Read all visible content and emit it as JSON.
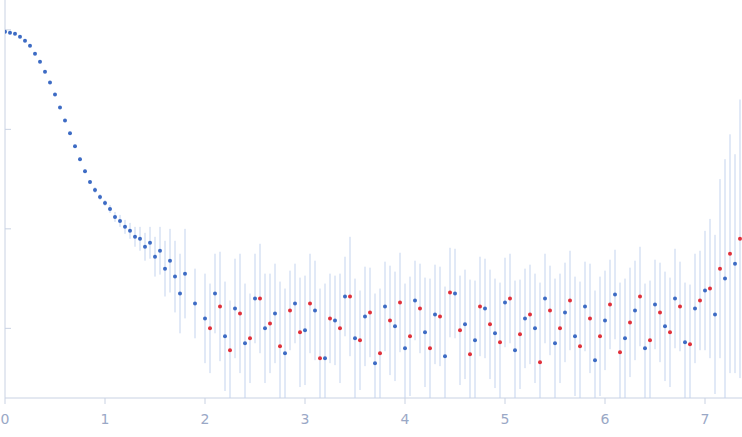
{
  "chart_data": {
    "type": "scatter",
    "log": "y",
    "tick_labels": "x",
    "grid": false,
    "xlim": [
      0,
      7.37
    ],
    "ylim": [
      0,
      4
    ],
    "xticks": [
      0,
      1,
      2,
      3,
      4,
      5,
      6,
      7
    ],
    "yticks": [
      0.7,
      1.7,
      2.7,
      3.7
    ],
    "series": [
      {
        "color": "#3d6bc4",
        "marker": "circle",
        "x": [
          0,
          0.05,
          0.1,
          0.15,
          0.2,
          0.25,
          0.3,
          0.35,
          0.4,
          0.45,
          0.5,
          0.55,
          0.6,
          0.65,
          0.7,
          0.75,
          0.8,
          0.85,
          0.9,
          0.95,
          1.0,
          1.05,
          1.1,
          1.15,
          1.2,
          1.25,
          1.3,
          1.35,
          1.4,
          1.45,
          1.5,
          1.55,
          1.6,
          1.65,
          1.7,
          1.75,
          1.8,
          1.9,
          2.0,
          2.1,
          2.2,
          2.3,
          2.4,
          2.5,
          2.6,
          2.7,
          2.8,
          2.9,
          3.0,
          3.1,
          3.2,
          3.3,
          3.4,
          3.5,
          3.6,
          3.7,
          3.8,
          3.9,
          4.0,
          4.1,
          4.2,
          4.3,
          4.4,
          4.5,
          4.6,
          4.7,
          4.8,
          4.9,
          5.0,
          5.1,
          5.2,
          5.3,
          5.4,
          5.5,
          5.6,
          5.7,
          5.8,
          5.9,
          6.0,
          6.1,
          6.2,
          6.3,
          6.4,
          6.5,
          6.6,
          6.7,
          6.8,
          6.9,
          7.0,
          7.1,
          7.2,
          7.3
        ],
        "values": [
          3.68,
          3.67,
          3.66,
          3.63,
          3.59,
          3.54,
          3.46,
          3.38,
          3.28,
          3.17,
          3.05,
          2.92,
          2.79,
          2.66,
          2.53,
          2.4,
          2.28,
          2.17,
          2.09,
          2.02,
          1.96,
          1.9,
          1.82,
          1.78,
          1.72,
          1.68,
          1.62,
          1.6,
          1.52,
          1.56,
          1.42,
          1.48,
          1.3,
          1.38,
          1.22,
          1.05,
          1.25,
          0.95,
          0.8,
          1.05,
          0.62,
          0.9,
          0.55,
          1.0,
          0.7,
          0.85,
          0.45,
          0.95,
          0.68,
          0.88,
          0.4,
          0.78,
          1.02,
          0.6,
          0.82,
          0.35,
          0.92,
          0.72,
          0.5,
          0.98,
          0.66,
          0.84,
          0.42,
          1.05,
          0.74,
          0.58,
          0.9,
          0.65,
          0.96,
          0.48,
          0.8,
          0.7,
          1.0,
          0.55,
          0.86,
          0.62,
          0.92,
          0.38,
          0.78,
          1.04,
          0.6,
          0.88,
          0.5,
          0.94,
          0.72,
          1.0,
          0.56,
          0.9,
          1.08,
          0.84,
          1.2,
          1.35
        ],
        "errors": [
          0.01,
          0.01,
          0.01,
          0.01,
          0.01,
          0.01,
          0.01,
          0.01,
          0.01,
          0.01,
          0.01,
          0.01,
          0.01,
          0.01,
          0.01,
          0.02,
          0.02,
          0.02,
          0.03,
          0.03,
          0.03,
          0.04,
          0.05,
          0.06,
          0.07,
          0.08,
          0.1,
          0.12,
          0.14,
          0.16,
          0.2,
          0.24,
          0.28,
          0.32,
          0.36,
          0.4,
          0.45,
          0.35,
          0.45,
          0.4,
          0.55,
          0.5,
          0.6,
          0.45,
          0.55,
          0.5,
          0.65,
          0.4,
          0.55,
          0.5,
          0.75,
          0.45,
          0.4,
          0.6,
          0.5,
          0.7,
          0.45,
          0.55,
          0.65,
          0.4,
          0.55,
          0.5,
          0.7,
          0.45,
          0.55,
          0.6,
          0.5,
          0.55,
          0.45,
          0.7,
          0.5,
          0.55,
          0.45,
          0.65,
          0.5,
          0.6,
          0.45,
          0.7,
          0.5,
          0.45,
          0.6,
          0.5,
          0.65,
          0.45,
          0.55,
          0.5,
          0.6,
          0.55,
          0.6,
          0.8,
          1.2,
          1.1
        ]
      },
      {
        "color": "#e0303a",
        "marker": "circle",
        "x": [
          2.05,
          2.15,
          2.25,
          2.35,
          2.45,
          2.55,
          2.65,
          2.75,
          2.85,
          2.95,
          3.05,
          3.15,
          3.25,
          3.35,
          3.45,
          3.55,
          3.65,
          3.75,
          3.85,
          3.95,
          4.05,
          4.15,
          4.25,
          4.35,
          4.45,
          4.55,
          4.65,
          4.75,
          4.85,
          4.95,
          5.05,
          5.15,
          5.25,
          5.35,
          5.45,
          5.55,
          5.65,
          5.75,
          5.85,
          5.95,
          6.05,
          6.15,
          6.25,
          6.35,
          6.45,
          6.55,
          6.65,
          6.75,
          6.85,
          6.95,
          7.05,
          7.15,
          7.25,
          7.35
        ],
        "values": [
          0.7,
          0.92,
          0.48,
          0.85,
          0.6,
          1.0,
          0.75,
          0.52,
          0.88,
          0.66,
          0.95,
          0.4,
          0.8,
          0.7,
          1.02,
          0.58,
          0.86,
          0.45,
          0.78,
          0.96,
          0.62,
          0.9,
          0.5,
          0.82,
          1.06,
          0.68,
          0.44,
          0.92,
          0.74,
          0.56,
          1.0,
          0.64,
          0.84,
          0.36,
          0.88,
          0.7,
          0.98,
          0.52,
          0.8,
          0.62,
          0.94,
          0.46,
          0.76,
          1.02,
          0.58,
          0.86,
          0.66,
          0.92,
          0.54,
          0.98,
          1.1,
          1.3,
          1.45,
          1.6
        ],
        "errors": [
          0.45,
          0.55,
          0.5,
          0.6,
          0.45,
          0.55,
          0.5,
          0.65,
          0.4,
          0.55,
          0.5,
          0.7,
          0.45,
          0.55,
          0.6,
          0.5,
          0.45,
          0.65,
          0.55,
          0.5,
          0.6,
          0.45,
          0.7,
          0.5,
          0.45,
          0.55,
          0.75,
          0.5,
          0.55,
          0.6,
          0.45,
          0.55,
          0.5,
          0.8,
          0.45,
          0.55,
          0.5,
          0.65,
          0.55,
          0.6,
          0.45,
          0.7,
          0.55,
          0.5,
          0.6,
          0.5,
          0.55,
          0.45,
          0.6,
          0.5,
          0.7,
          0.9,
          1.2,
          1.4
        ]
      }
    ]
  }
}
